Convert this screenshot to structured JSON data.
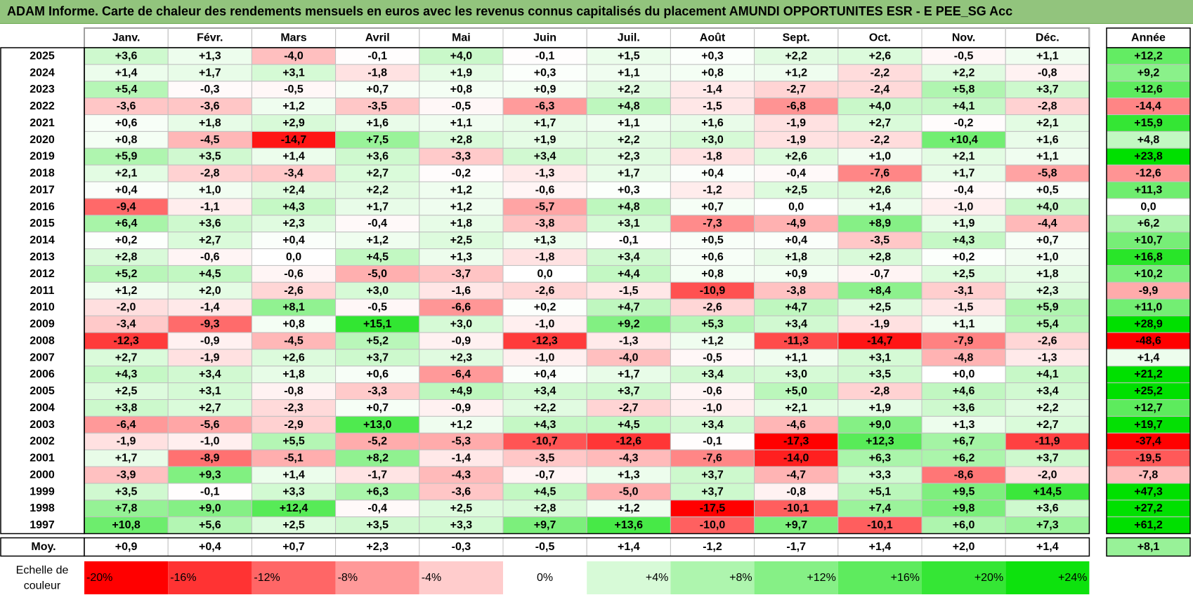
{
  "title": "ADAM Informe. Carte de chaleur des rendements mensuels en euros avec les revenus connus capitalisés du placement AMUNDI OPPORTUNITES ESR - E PEE_SG Acc",
  "chart_data": {
    "type": "heatmap",
    "title": "ADAM Informe. Carte de chaleur des rendements mensuels en euros avec les revenus connus capitalisés du placement AMUNDI OPPORTUNITES ESR - E PEE_SG Acc",
    "columns": [
      "Janv.",
      "Févr.",
      "Mars",
      "Avril",
      "Mai",
      "Juin",
      "Juil.",
      "Août",
      "Sept.",
      "Oct.",
      "Nov.",
      "Déc."
    ],
    "annual_header": "Année",
    "average_label": "Moy.",
    "rows": [
      {
        "year": "2025",
        "values": [
          "+3,6",
          "+1,3",
          "-4,0",
          "-0,1",
          "+4,0",
          "-0,1",
          "+1,5",
          "+0,3",
          "+2,2",
          "+2,6",
          "-0,5",
          "+1,1"
        ],
        "annual": "+12,2"
      },
      {
        "year": "2024",
        "values": [
          "+1,4",
          "+1,7",
          "+3,1",
          "-1,8",
          "+1,9",
          "+0,3",
          "+1,1",
          "+0,8",
          "+1,2",
          "-2,2",
          "+2,2",
          "-0,8"
        ],
        "annual": "+9,2"
      },
      {
        "year": "2023",
        "values": [
          "+5,4",
          "-0,3",
          "-0,5",
          "+0,7",
          "+0,8",
          "+0,9",
          "+2,2",
          "-1,4",
          "-2,7",
          "-2,4",
          "+5,8",
          "+3,7"
        ],
        "annual": "+12,6"
      },
      {
        "year": "2022",
        "values": [
          "-3,6",
          "-3,6",
          "+1,2",
          "-3,5",
          "-0,5",
          "-6,3",
          "+4,8",
          "-1,5",
          "-6,8",
          "+4,0",
          "+4,1",
          "-2,8"
        ],
        "annual": "-14,4"
      },
      {
        "year": "2021",
        "values": [
          "+0,6",
          "+1,8",
          "+2,9",
          "+1,6",
          "+1,1",
          "+1,7",
          "+1,1",
          "+1,6",
          "-1,9",
          "+2,7",
          "-0,2",
          "+2,1"
        ],
        "annual": "+15,9"
      },
      {
        "year": "2020",
        "values": [
          "+0,8",
          "-4,5",
          "-14,7",
          "+7,5",
          "+2,8",
          "+1,9",
          "+2,2",
          "+3,0",
          "-1,9",
          "-2,2",
          "+10,4",
          "+1,6"
        ],
        "annual": "+4,8"
      },
      {
        "year": "2019",
        "values": [
          "+5,9",
          "+3,5",
          "+1,4",
          "+3,6",
          "-3,3",
          "+3,4",
          "+2,3",
          "-1,8",
          "+2,6",
          "+1,0",
          "+2,1",
          "+1,1"
        ],
        "annual": "+23,8"
      },
      {
        "year": "2018",
        "values": [
          "+2,1",
          "-2,8",
          "-3,4",
          "+2,7",
          "-0,2",
          "-1,3",
          "+1,7",
          "+0,4",
          "-0,4",
          "-7,6",
          "+1,7",
          "-5,8"
        ],
        "annual": "-12,6"
      },
      {
        "year": "2017",
        "values": [
          "+0,4",
          "+1,0",
          "+2,4",
          "+2,2",
          "+1,2",
          "-0,6",
          "+0,3",
          "-1,2",
          "+2,5",
          "+2,6",
          "-0,4",
          "+0,5"
        ],
        "annual": "+11,3"
      },
      {
        "year": "2016",
        "values": [
          "-9,4",
          "-1,1",
          "+4,3",
          "+1,7",
          "+1,2",
          "-5,7",
          "+4,8",
          "+0,7",
          "0,0",
          "+1,4",
          "-1,0",
          "+4,0"
        ],
        "annual": "0,0"
      },
      {
        "year": "2015",
        "values": [
          "+6,4",
          "+3,6",
          "+2,3",
          "-0,4",
          "+1,8",
          "-3,8",
          "+3,1",
          "-7,3",
          "-4,9",
          "+8,9",
          "+1,9",
          "-4,4"
        ],
        "annual": "+6,2"
      },
      {
        "year": "2014",
        "values": [
          "+0,2",
          "+2,7",
          "+0,4",
          "+1,2",
          "+2,5",
          "+1,3",
          "-0,1",
          "+0,5",
          "+0,4",
          "-3,5",
          "+4,3",
          "+0,7"
        ],
        "annual": "+10,7"
      },
      {
        "year": "2013",
        "values": [
          "+2,8",
          "-0,6",
          "0,0",
          "+4,5",
          "+1,3",
          "-1,8",
          "+3,4",
          "+0,6",
          "+1,8",
          "+2,8",
          "+0,2",
          "+1,0"
        ],
        "annual": "+16,8"
      },
      {
        "year": "2012",
        "values": [
          "+5,2",
          "+4,5",
          "-0,6",
          "-5,0",
          "-3,7",
          "0,0",
          "+4,4",
          "+0,8",
          "+0,9",
          "-0,7",
          "+2,5",
          "+1,8"
        ],
        "annual": "+10,2"
      },
      {
        "year": "2011",
        "values": [
          "+1,2",
          "+2,0",
          "-2,6",
          "+3,0",
          "-1,6",
          "-2,6",
          "-1,5",
          "-10,9",
          "-3,8",
          "+8,4",
          "-3,1",
          "+2,3"
        ],
        "annual": "-9,9"
      },
      {
        "year": "2010",
        "values": [
          "-2,0",
          "-1,4",
          "+8,1",
          "-0,5",
          "-6,6",
          "+0,2",
          "+4,7",
          "-2,6",
          "+4,7",
          "+2,5",
          "-1,5",
          "+5,9"
        ],
        "annual": "+11,0"
      },
      {
        "year": "2009",
        "values": [
          "-3,4",
          "-9,3",
          "+0,8",
          "+15,1",
          "+3,0",
          "-1,0",
          "+9,2",
          "+5,3",
          "+3,4",
          "-1,9",
          "+1,1",
          "+5,4"
        ],
        "annual": "+28,9"
      },
      {
        "year": "2008",
        "values": [
          "-12,3",
          "-0,9",
          "-4,5",
          "+5,2",
          "-0,9",
          "-12,3",
          "-1,3",
          "+1,2",
          "-11,3",
          "-14,7",
          "-7,9",
          "-2,6"
        ],
        "annual": "-48,6"
      },
      {
        "year": "2007",
        "values": [
          "+2,7",
          "-1,9",
          "+2,6",
          "+3,7",
          "+2,3",
          "-1,0",
          "-4,0",
          "-0,5",
          "+1,1",
          "+3,1",
          "-4,8",
          "-1,3"
        ],
        "annual": "+1,4"
      },
      {
        "year": "2006",
        "values": [
          "+4,3",
          "+3,4",
          "+1,8",
          "+0,6",
          "-6,4",
          "+0,4",
          "+1,7",
          "+3,4",
          "+3,0",
          "+3,5",
          "+0,0",
          "+4,1"
        ],
        "annual": "+21,2"
      },
      {
        "year": "2005",
        "values": [
          "+2,5",
          "+3,1",
          "-0,8",
          "-3,3",
          "+4,9",
          "+3,4",
          "+3,7",
          "-0,6",
          "+5,0",
          "-2,8",
          "+4,6",
          "+3,4"
        ],
        "annual": "+25,2"
      },
      {
        "year": "2004",
        "values": [
          "+3,8",
          "+2,7",
          "-2,3",
          "+0,7",
          "-0,9",
          "+2,2",
          "-2,7",
          "-1,0",
          "+2,1",
          "+1,9",
          "+3,6",
          "+2,2"
        ],
        "annual": "+12,7"
      },
      {
        "year": "2003",
        "values": [
          "-6,4",
          "-5,6",
          "-2,9",
          "+13,0",
          "+1,2",
          "+4,3",
          "+4,5",
          "+3,4",
          "-4,6",
          "+9,0",
          "+1,3",
          "+2,7"
        ],
        "annual": "+19,7"
      },
      {
        "year": "2002",
        "values": [
          "-1,9",
          "-1,0",
          "+5,5",
          "-5,2",
          "-5,3",
          "-10,7",
          "-12,6",
          "-0,1",
          "-17,3",
          "+12,3",
          "+6,7",
          "-11,9"
        ],
        "annual": "-37,4"
      },
      {
        "year": "2001",
        "values": [
          "+1,7",
          "-8,9",
          "-5,1",
          "+8,2",
          "-1,4",
          "-3,5",
          "-4,3",
          "-7,6",
          "-14,0",
          "+6,3",
          "+6,2",
          "+3,7"
        ],
        "annual": "-19,5"
      },
      {
        "year": "2000",
        "values": [
          "-3,9",
          "+9,3",
          "+1,4",
          "-1,7",
          "-4,3",
          "-0,7",
          "+1,3",
          "+3,7",
          "-4,7",
          "+3,3",
          "-8,6",
          "-2,0"
        ],
        "annual": "-7,8"
      },
      {
        "year": "1999",
        "values": [
          "+3,5",
          "-0,1",
          "+3,3",
          "+6,3",
          "-3,6",
          "+4,5",
          "-5,0",
          "+3,7",
          "-0,8",
          "+5,1",
          "+9,5",
          "+14,5"
        ],
        "annual": "+47,3"
      },
      {
        "year": "1998",
        "values": [
          "+7,8",
          "+9,0",
          "+12,4",
          "-0,4",
          "+2,5",
          "+2,8",
          "+1,2",
          "-17,5",
          "-10,1",
          "+7,4",
          "+9,8",
          "+3,6"
        ],
        "annual": "+27,2"
      },
      {
        "year": "1997",
        "values": [
          "+10,8",
          "+5,6",
          "+2,5",
          "+3,5",
          "+3,3",
          "+9,7",
          "+13,6",
          "-10,0",
          "+9,7",
          "-10,1",
          "+6,0",
          "+7,3"
        ],
        "annual": "+61,2"
      }
    ],
    "averages": [
      "+0,9",
      "+0,4",
      "+0,7",
      "+2,3",
      "-0,3",
      "-0,5",
      "+1,4",
      "-1,2",
      "-1,7",
      "+1,4",
      "+2,0",
      "+1,4"
    ],
    "average_annual": "+8,1",
    "scale_label": "Echelle de couleur",
    "scale": [
      {
        "label": "-20%",
        "value": -20
      },
      {
        "label": "-16%",
        "value": -16
      },
      {
        "label": "-12%",
        "value": -12
      },
      {
        "label": "-8%",
        "value": -8
      },
      {
        "label": "-4%",
        "value": -4
      },
      {
        "label": "0%",
        "value": 0
      },
      {
        "label": "+4%",
        "value": 4
      },
      {
        "label": "+8%",
        "value": 8
      },
      {
        "label": "+12%",
        "value": 12
      },
      {
        "label": "+16%",
        "value": 16
      },
      {
        "label": "+20%",
        "value": 20
      },
      {
        "label": "+24%",
        "value": 24
      }
    ],
    "colors": {
      "negative_max": "#ff0000",
      "neutral": "#ffffff",
      "positive_max": "#00e000",
      "title_bar": "#92c47d",
      "grid": "#c0c0c0"
    }
  }
}
